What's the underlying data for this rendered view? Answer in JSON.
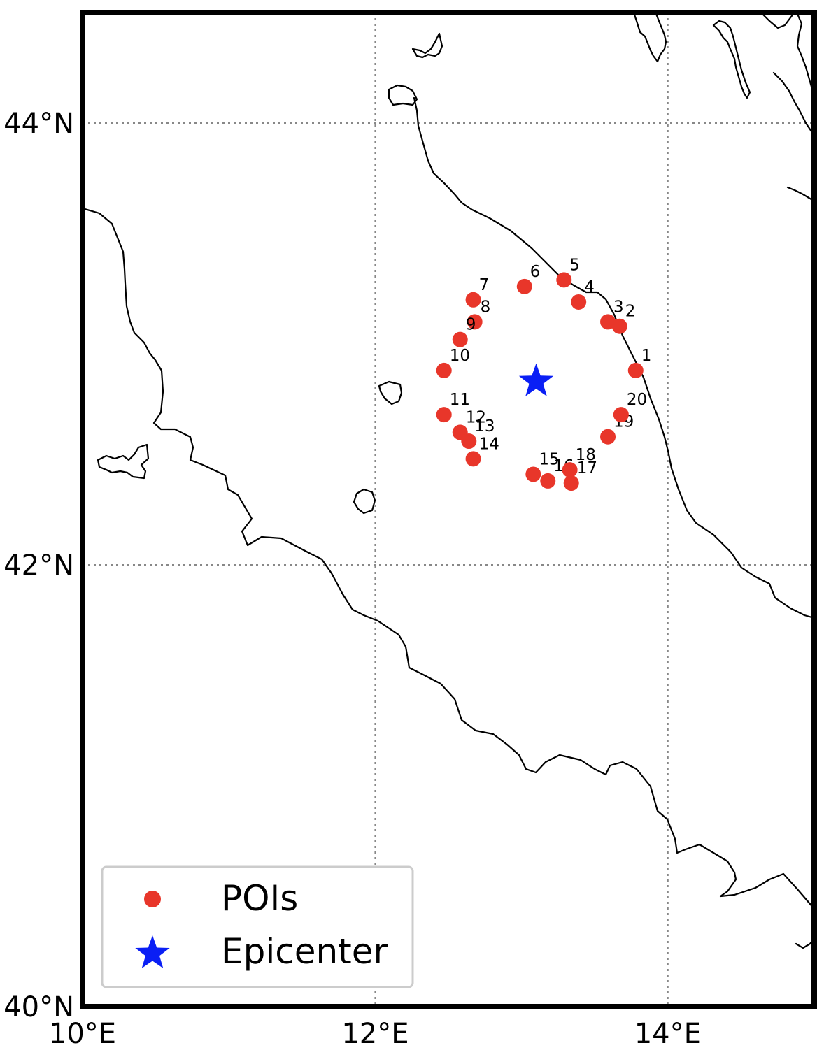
{
  "map": {
    "extent": {
      "lon": [
        10,
        15
      ],
      "lat": [
        40,
        44.5
      ]
    },
    "grid": true,
    "colors": {
      "poi": "#e8362a",
      "epicenter": "#0a1ff5",
      "coast": "#000000",
      "grid": "#888888",
      "frame": "#000000"
    },
    "x_ticks": [
      {
        "value": 10,
        "label": "10°E"
      },
      {
        "value": 12,
        "label": "12°E"
      },
      {
        "value": 14,
        "label": "14°E"
      }
    ],
    "y_ticks": [
      {
        "value": 40,
        "label": "40°N"
      },
      {
        "value": 42,
        "label": "42°N"
      },
      {
        "value": 44,
        "label": "44°N"
      }
    ],
    "epicenter": {
      "lon": 13.1,
      "lat": 42.83
    },
    "pois": [
      {
        "label": "1",
        "lon": 13.78,
        "lat": 42.88
      },
      {
        "label": "2",
        "lon": 13.67,
        "lat": 43.08
      },
      {
        "label": "3",
        "lon": 13.59,
        "lat": 43.1
      },
      {
        "label": "4",
        "lon": 13.39,
        "lat": 43.19
      },
      {
        "label": "5",
        "lon": 13.29,
        "lat": 43.29
      },
      {
        "label": "6",
        "lon": 13.02,
        "lat": 43.26
      },
      {
        "label": "7",
        "lon": 12.67,
        "lat": 43.2
      },
      {
        "label": "8",
        "lon": 12.68,
        "lat": 43.1
      },
      {
        "label": "9",
        "lon": 12.58,
        "lat": 43.02
      },
      {
        "label": "10",
        "lon": 12.47,
        "lat": 42.88
      },
      {
        "label": "11",
        "lon": 12.47,
        "lat": 42.68
      },
      {
        "label": "12",
        "lon": 12.58,
        "lat": 42.6
      },
      {
        "label": "13",
        "lon": 12.64,
        "lat": 42.56
      },
      {
        "label": "14",
        "lon": 12.67,
        "lat": 42.48
      },
      {
        "label": "15",
        "lon": 13.08,
        "lat": 42.41
      },
      {
        "label": "16",
        "lon": 13.18,
        "lat": 42.38
      },
      {
        "label": "17",
        "lon": 13.34,
        "lat": 42.37
      },
      {
        "label": "18",
        "lon": 13.33,
        "lat": 42.43
      },
      {
        "label": "19",
        "lon": 13.59,
        "lat": 42.58
      },
      {
        "label": "20",
        "lon": 13.68,
        "lat": 42.68
      }
    ]
  },
  "legend": {
    "position": "lower-left",
    "items": [
      {
        "label": "POIs",
        "marker": "circle",
        "color": "#e8362a"
      },
      {
        "label": "Epicenter",
        "marker": "star",
        "color": "#0a1ff5"
      }
    ]
  }
}
